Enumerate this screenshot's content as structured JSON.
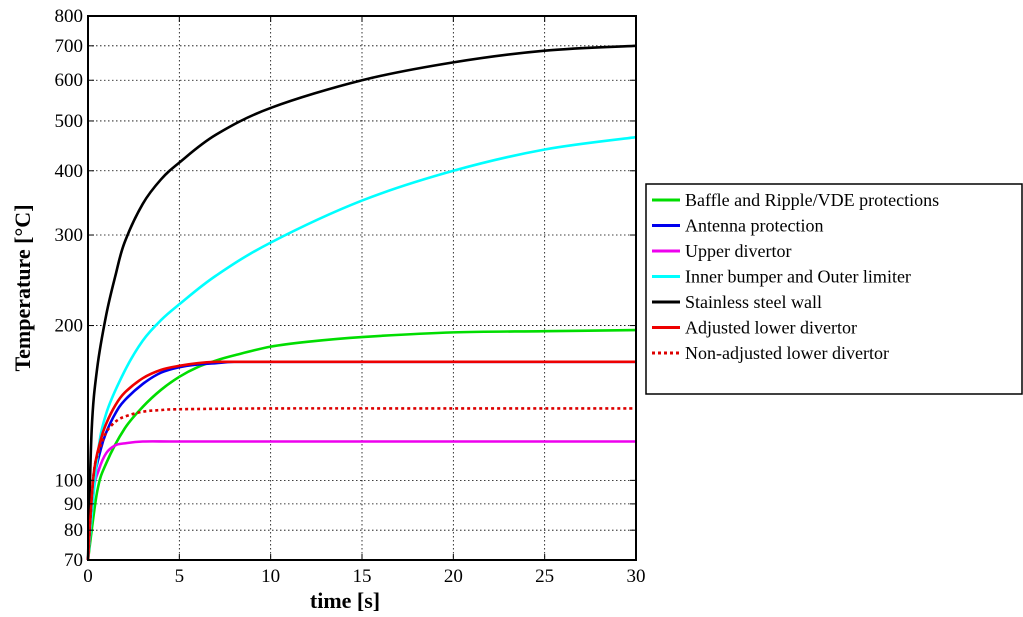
{
  "chart_data": {
    "type": "line",
    "title": "",
    "xlabel": "time [s]",
    "ylabel": "Temperature [°C]",
    "xlim": [
      0,
      30
    ],
    "ylim": [
      70,
      800
    ],
    "yscale": "log",
    "grid": true,
    "legend_position": "right",
    "x_ticks": [
      0,
      5,
      10,
      15,
      20,
      25,
      30
    ],
    "x_tick_labels": [
      "0",
      "5",
      "10",
      "15",
      "20",
      "25",
      "30"
    ],
    "y_ticks": [
      70,
      80,
      90,
      100,
      200,
      300,
      400,
      500,
      600,
      700,
      800
    ],
    "y_tick_labels": [
      "70",
      "80",
      "90",
      "100",
      "200",
      "300",
      "400",
      "500",
      "600",
      "700",
      "800"
    ],
    "series": [
      {
        "name": "Baffle and Ripple/VDE protections",
        "color": "#00dd00",
        "dash": "solid",
        "x": [
          0,
          0.5,
          1,
          2,
          3,
          4,
          5,
          6,
          7,
          8,
          10,
          12,
          15,
          20,
          25,
          30
        ],
        "y": [
          70,
          95,
          108,
          126,
          139,
          150,
          159,
          166,
          171,
          175,
          182,
          186,
          190,
          194,
          195,
          196
        ]
      },
      {
        "name": "Antenna protection",
        "color": "#0000ee",
        "dash": "solid",
        "x": [
          0,
          0.3,
          0.7,
          1,
          1.5,
          2,
          3,
          4,
          5,
          6,
          7,
          8,
          10,
          15,
          20,
          25,
          30
        ],
        "y": [
          70,
          98,
          115,
          124,
          135,
          143,
          154,
          162,
          166,
          168,
          169,
          170,
          170,
          170,
          170,
          170,
          170
        ]
      },
      {
        "name": "Upper divertor",
        "color": "#ee00ee",
        "dash": "solid",
        "x": [
          0,
          0.3,
          0.6,
          1,
          1.5,
          2,
          3,
          5,
          10,
          20,
          30
        ],
        "y": [
          70,
          95,
          105,
          113,
          117,
          118,
          119,
          119,
          119,
          119,
          119
        ]
      },
      {
        "name": "Inner bumper and Outer limiter",
        "color": "#00ffff",
        "dash": "solid",
        "x": [
          0,
          0.5,
          1,
          2,
          3,
          4,
          5,
          7,
          10,
          15,
          20,
          25,
          30
        ],
        "y": [
          70,
          110,
          135,
          163,
          187,
          205,
          220,
          250,
          290,
          350,
          400,
          440,
          465
        ]
      },
      {
        "name": "Stainless steel wall",
        "color": "#000000",
        "dash": "solid",
        "x": [
          0,
          0.2,
          0.5,
          1,
          1.5,
          2,
          3,
          4,
          5,
          7,
          10,
          15,
          20,
          25,
          30
        ],
        "y": [
          70,
          125,
          165,
          210,
          250,
          290,
          345,
          385,
          415,
          470,
          530,
          600,
          650,
          685,
          700
        ]
      },
      {
        "name": "Adjusted lower divertor",
        "color": "#ee0000",
        "dash": "solid",
        "x": [
          0,
          0.3,
          0.7,
          1,
          1.5,
          2,
          3,
          4,
          5,
          6,
          7,
          8,
          10,
          15,
          20,
          25,
          30
        ],
        "y": [
          70,
          102,
          120,
          129,
          140,
          148,
          158,
          164,
          167,
          169,
          170,
          170,
          170,
          170,
          170,
          170,
          170
        ]
      },
      {
        "name": "Non-adjusted lower divertor",
        "color": "#dd0000",
        "dash": "dotted",
        "x": [
          0,
          0.3,
          0.6,
          1,
          1.5,
          2,
          3,
          4,
          5,
          10,
          20,
          30
        ],
        "y": [
          70,
          102,
          114,
          124,
          130,
          133,
          136,
          137,
          137.5,
          138,
          138,
          138
        ]
      }
    ]
  }
}
